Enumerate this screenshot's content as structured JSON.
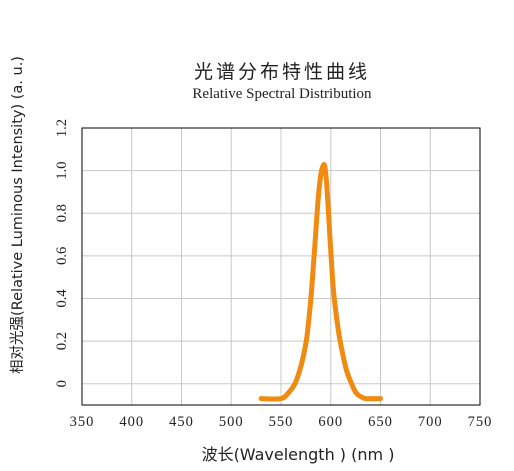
{
  "chart_data": {
    "type": "line",
    "title": "光谱分布特性曲线",
    "subtitle": "Relative Spectral Distribution",
    "xlabel": "波长(Wavelength ) (nm )",
    "ylabel": "相对光强(Relative Luminous Intensity) (a. u.)",
    "xlim": [
      350,
      750
    ],
    "ylim": [
      -0.1,
      1.2
    ],
    "xticks": [
      350,
      400,
      450,
      500,
      550,
      600,
      650,
      700,
      750
    ],
    "yticks": [
      0,
      0.2,
      0.4,
      0.6,
      0.8,
      1.0,
      1.2
    ],
    "xtick_labels": [
      "350",
      "400",
      "450",
      "500",
      "550",
      "600",
      "650",
      "700",
      "750"
    ],
    "ytick_labels": [
      "0",
      "0.2",
      "0.4",
      "0.6",
      "0.8",
      "1.0",
      "1.2"
    ],
    "grid": true,
    "line_color": "#f08a10",
    "grid_color": "#c8c8c8",
    "series": [
      {
        "x": [
          530,
          550,
          558,
          564,
          568,
          572,
          576,
          580,
          583,
          586,
          588,
          590,
          592,
          594,
          596,
          598,
          600,
          602,
          604,
          608,
          612,
          616,
          620,
          625,
          630,
          635,
          640,
          650
        ],
        "y": [
          -0.07,
          -0.07,
          -0.04,
          0.0,
          0.05,
          0.12,
          0.22,
          0.4,
          0.58,
          0.78,
          0.9,
          0.98,
          1.02,
          1.02,
          0.93,
          0.78,
          0.62,
          0.48,
          0.38,
          0.24,
          0.14,
          0.06,
          0.01,
          -0.04,
          -0.06,
          -0.07,
          -0.07,
          -0.07
        ]
      }
    ]
  }
}
